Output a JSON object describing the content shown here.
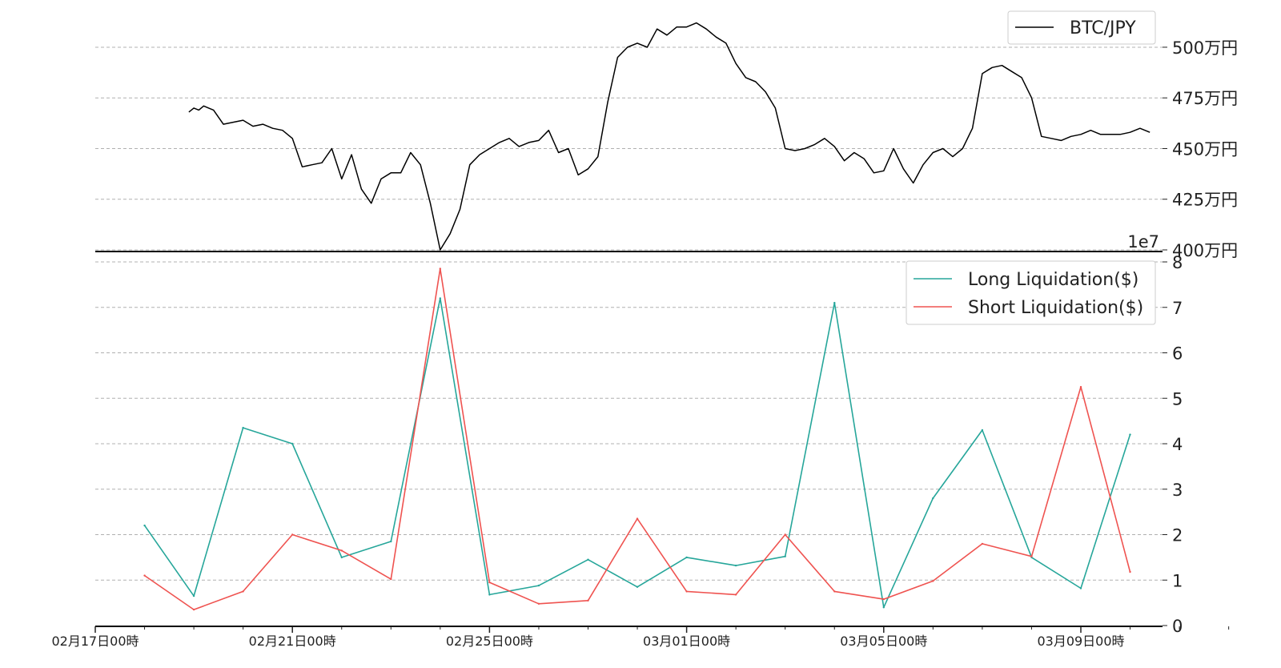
{
  "chart_data": [
    {
      "type": "line",
      "legend_placement": "top-right",
      "grid": true,
      "ylim": [
        4000000,
        5150000
      ],
      "yticks": [
        4000000,
        4250000,
        4500000,
        4750000,
        5000000
      ],
      "ytick_labels": [
        "400万円",
        "425万円",
        "450万円",
        "475万円",
        "500万円"
      ],
      "offset_label": "1e7",
      "series": [
        {
          "name": "BTC/JPY",
          "color": "#000000",
          "x": [
            1.9,
            2.0,
            2.1,
            2.2,
            2.3,
            2.4,
            2.6,
            2.8,
            3.0,
            3.2,
            3.4,
            3.6,
            3.8,
            4.0,
            4.2,
            4.4,
            4.6,
            4.8,
            5.0,
            5.2,
            5.4,
            5.6,
            5.8,
            6.0,
            6.2,
            6.4,
            6.6,
            6.8,
            7.0,
            7.2,
            7.4,
            7.6,
            7.8,
            8.0,
            8.2,
            8.4,
            8.6,
            8.8,
            9.0,
            9.2,
            9.4,
            9.6,
            9.8,
            10.0,
            10.2,
            10.4,
            10.6,
            10.8,
            11.0,
            11.2,
            11.4,
            11.6,
            11.8,
            12.0,
            12.2,
            12.4,
            12.6,
            12.8,
            13.0,
            13.2,
            13.4,
            13.6,
            13.8,
            14.0,
            14.2,
            14.4,
            14.6,
            14.8,
            15.0,
            15.2,
            15.4,
            15.6,
            15.8,
            16.0,
            16.2,
            16.4,
            16.6,
            16.8,
            17.0,
            17.2,
            17.4,
            17.6,
            17.8,
            18.0,
            18.2,
            18.4,
            18.6,
            18.8,
            19.0,
            19.2,
            19.4,
            19.6,
            19.8,
            20.0,
            20.2,
            20.4,
            20.6,
            20.8,
            21.0,
            21.2,
            21.4
          ],
          "values": [
            4680000,
            4700000,
            4690000,
            4710000,
            4700000,
            4690000,
            4620000,
            4630000,
            4640000,
            4610000,
            4620000,
            4600000,
            4590000,
            4550000,
            4410000,
            4420000,
            4430000,
            4500000,
            4350000,
            4470000,
            4300000,
            4230000,
            4350000,
            4380000,
            4380000,
            4480000,
            4420000,
            4230000,
            4000000,
            4080000,
            4200000,
            4420000,
            4470000,
            4500000,
            4530000,
            4550000,
            4510000,
            4530000,
            4540000,
            4590000,
            4480000,
            4500000,
            4370000,
            4400000,
            4460000,
            4730000,
            4950000,
            5000000,
            5020000,
            5000000,
            5090000,
            5060000,
            5100000,
            5100000,
            5120000,
            5090000,
            5050000,
            5020000,
            4920000,
            4850000,
            4830000,
            4780000,
            4700000,
            4500000,
            4490000,
            4500000,
            4520000,
            4550000,
            4510000,
            4440000,
            4480000,
            4450000,
            4380000,
            4390000,
            4500000,
            4400000,
            4330000,
            4420000,
            4480000,
            4500000,
            4460000,
            4500000,
            4600000,
            4870000,
            4900000,
            4910000,
            4880000,
            4850000,
            4750000,
            4560000,
            4550000,
            4540000,
            4560000,
            4570000,
            4590000,
            4570000,
            4570000,
            4570000,
            4580000,
            4600000,
            4580000
          ]
        }
      ]
    },
    {
      "type": "line",
      "legend_placement": "top-right",
      "grid": true,
      "ylim": [
        0,
        8
      ],
      "yticks": [
        0,
        1,
        2,
        3,
        4,
        5,
        6,
        7,
        8
      ],
      "xlim": [
        0,
        23.5
      ],
      "xticks": [
        0,
        4,
        8,
        12,
        16,
        20
      ],
      "categories": [
        "02月17日00時",
        "02月21日00時",
        "02月25日00時",
        "03月01日00時",
        "03月05日00時",
        "03月09日00時"
      ],
      "series": [
        {
          "name": "Long Liquidation($)",
          "color": "#26a69a",
          "x": [
            1,
            2,
            3,
            4,
            5,
            6,
            7,
            8,
            9,
            10,
            11,
            12,
            13,
            14,
            15,
            16,
            17,
            18,
            19,
            20,
            21
          ],
          "values": [
            2.2,
            0.65,
            4.35,
            4.0,
            1.5,
            1.85,
            7.2,
            0.68,
            0.88,
            1.45,
            0.85,
            1.5,
            1.32,
            1.52,
            7.1,
            0.4,
            2.8,
            4.3,
            1.5,
            0.82,
            4.2
          ]
        },
        {
          "name": "Short Liquidation($)",
          "color": "#ef5350",
          "x": [
            1,
            2,
            3,
            4,
            5,
            6,
            7,
            8,
            9,
            10,
            11,
            12,
            13,
            14,
            15,
            16,
            17,
            18,
            19,
            20,
            21
          ],
          "values": [
            1.1,
            0.35,
            0.75,
            2.0,
            1.65,
            1.02,
            7.85,
            0.95,
            0.48,
            0.55,
            2.35,
            0.75,
            0.68,
            2.0,
            0.75,
            0.58,
            0.98,
            1.8,
            1.52,
            5.25,
            1.18
          ]
        }
      ]
    }
  ]
}
